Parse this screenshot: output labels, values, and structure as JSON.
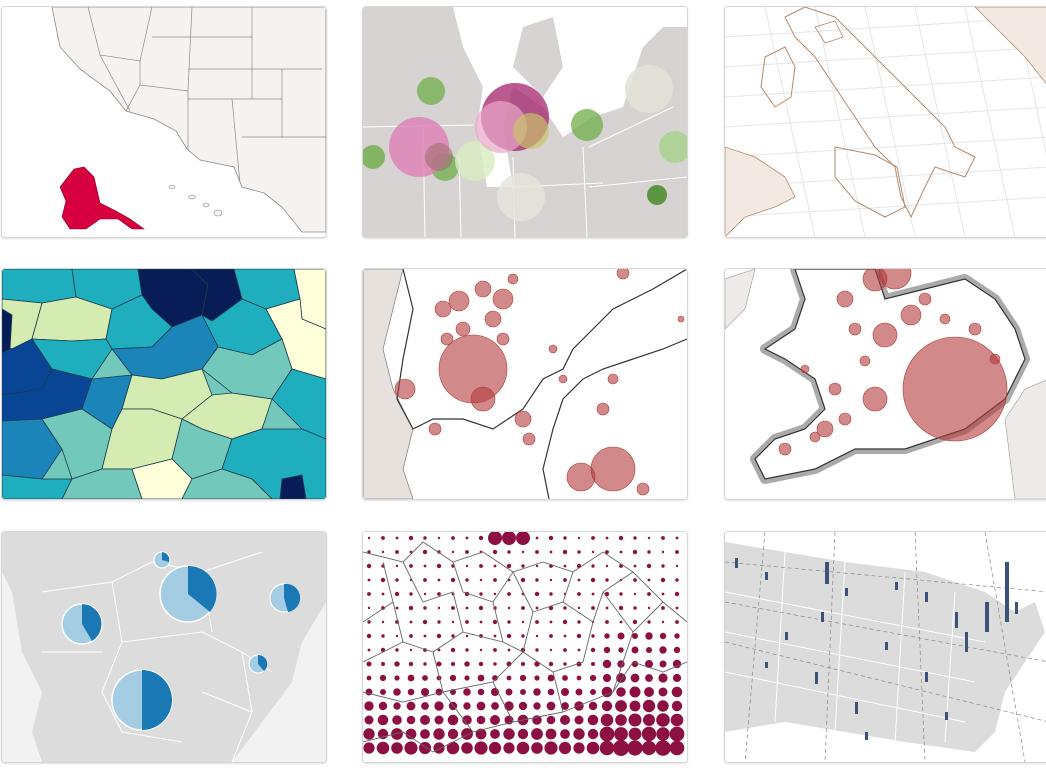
{
  "gallery": {
    "items": [
      {
        "label": "",
        "highlight_color": "#d6003e",
        "base_color": "#f6f2f0"
      },
      {
        "label": "",
        "pink": "#de7fb6",
        "green": "#6fae48",
        "magenta": "#a3236b"
      },
      {
        "label": "",
        "outline_color": "#b08c6e"
      },
      {
        "label": "",
        "palette": [
          "#ffffd9",
          "#d4ecb2",
          "#73c8bc",
          "#1eaebe",
          "#1b84b9",
          "#084695",
          "#081d58"
        ]
      },
      {
        "label": "",
        "bubble_color": "#b23b3b"
      },
      {
        "label": "",
        "bubble_color": "#b23b3b"
      },
      {
        "label": "",
        "pie_colors": [
          "#a4cde4",
          "#1a78b5"
        ]
      },
      {
        "label": "",
        "dot_color": "#8c1042"
      },
      {
        "label": "",
        "bar_color": "#3d5277"
      }
    ]
  }
}
